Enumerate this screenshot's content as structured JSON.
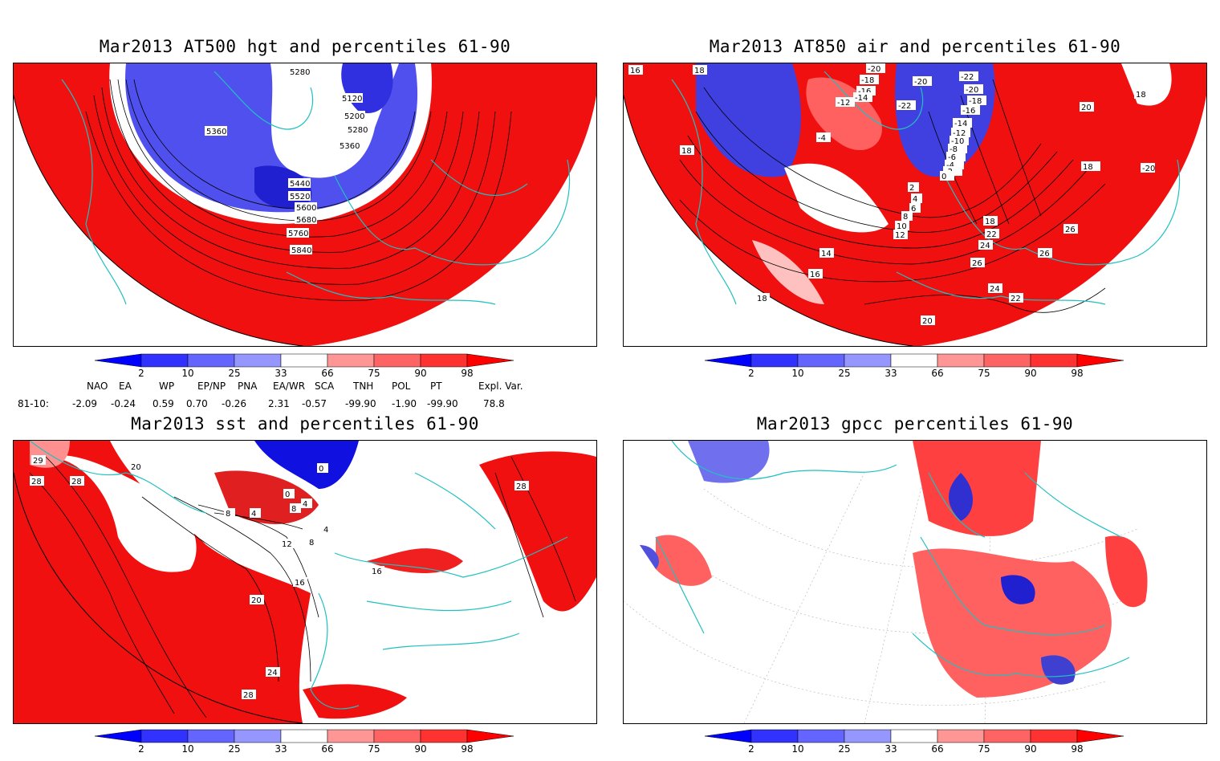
{
  "panels": [
    {
      "title": "Mar2013 AT500 hgt and percentiles 61-90",
      "contour_labels": [
        "5280",
        "5120",
        "5200",
        "5280",
        "5360",
        "5360",
        "5440",
        "5520",
        "5600",
        "5680",
        "5760",
        "5840"
      ]
    },
    {
      "title": "Mar2013 AT850 air and percentiles 61-90",
      "contour_labels": [
        "16",
        "18",
        "-20",
        "-18",
        "-16",
        "-14",
        "-12",
        "-22",
        "-20",
        "-22",
        "-20",
        "-18",
        "-16",
        "-14",
        "-12",
        "-10",
        "-8",
        "-6",
        "-4",
        "-2",
        "0",
        "-4",
        "2",
        "4",
        "6",
        "8",
        "10",
        "12",
        "14",
        "16",
        "18",
        "20",
        "18",
        "18",
        "-20",
        "18",
        "22",
        "24",
        "26",
        "26",
        "26",
        "24",
        "22",
        "20",
        "18"
      ]
    },
    {
      "title": "Mar2013 sst and percentiles 61-90",
      "contour_labels": [
        "29",
        "28",
        "28",
        "20",
        "0",
        "4",
        "0",
        "8",
        "4",
        "12",
        "8",
        "16",
        "4",
        "8",
        "16",
        "20",
        "24",
        "28",
        "28"
      ]
    },
    {
      "title": "Mar2013 gpcc percentiles 61-90",
      "contour_labels": []
    }
  ],
  "colorbar": {
    "ticks": [
      "2",
      "10",
      "25",
      "33",
      "66",
      "75",
      "90",
      "98"
    ],
    "colors": [
      "#0000ff",
      "#3232ff",
      "#6464ff",
      "#9696ff",
      "#ffffff",
      "#ff9696",
      "#ff6464",
      "#ff3232",
      "#ff0000"
    ]
  },
  "indices": {
    "headers": [
      "NAO",
      "EA",
      "WP",
      "EP/NP",
      "PNA",
      "EA/WR",
      "SCA",
      "TNH",
      "POL",
      "PT",
      "Expl. Var."
    ],
    "row_label": "81-10:",
    "values": [
      "-2.09",
      "-0.24",
      "0.59",
      "0.70",
      "-0.26",
      "2.31",
      "-0.57",
      "-99.90",
      "-1.90",
      "-99.90",
      "78.8"
    ]
  },
  "colors": {
    "coast": "#20c0c0",
    "red": "#f01010",
    "blue": "#3030e8"
  }
}
